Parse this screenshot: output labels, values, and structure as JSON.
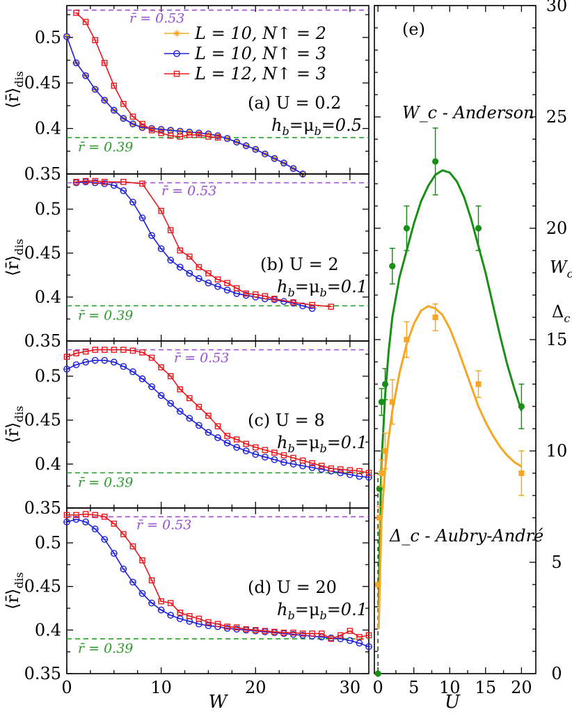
{
  "figure": {
    "x_label_left": "W",
    "x_label_right": "U",
    "y_label_left": "⟨r̄⟩",
    "y_label_left_sub": "dis",
    "right_axis_label_top": "W",
    "right_axis_label_top_sub": "c",
    "right_axis_label_bottom": "Δ",
    "right_axis_label_bottom_sub": "c"
  },
  "legend": [
    {
      "label": "L = 10, N↑ = 2",
      "color": "#f5a623",
      "marker": "star"
    },
    {
      "label": "L = 10, N↑ = 3",
      "color": "#1f22d6",
      "marker": "circle"
    },
    {
      "label": "L = 12, N↑ = 3",
      "color": "#e8191c",
      "marker": "square"
    }
  ],
  "colors": {
    "blue": "#1f22d6",
    "red": "#e8191c",
    "orange": "#f5a623",
    "green": "#1a8f17",
    "purple": "#9a4fd0",
    "dgreen": "#2e9a2e"
  },
  "chart_data": [
    {
      "type": "line",
      "panel": "a",
      "label_line1": "(a) U = 0.2",
      "label_line2": "h_b=μ_b=0.5",
      "xlabel": "",
      "ylabel": "⟨r̄⟩_dis",
      "xlim": [
        0,
        32
      ],
      "ylim": [
        0.35,
        0.535
      ],
      "yticks": [
        0.35,
        0.4,
        0.45,
        0.5
      ],
      "ref_lines": [
        {
          "y": 0.53,
          "label": "r̄ = 0.53"
        },
        {
          "y": 0.39,
          "label": "r̄ = 0.39"
        }
      ],
      "series": [
        {
          "name": "L = 10, N↑ = 2",
          "x": [
            0,
            1,
            2,
            3,
            4,
            5,
            6,
            7,
            8,
            9,
            10,
            11,
            12,
            13,
            14,
            15,
            16,
            17,
            18,
            19,
            20,
            21,
            22,
            23,
            24,
            25
          ],
          "y": [
            0.501,
            0.472,
            0.458,
            0.443,
            0.431,
            0.42,
            0.411,
            0.405,
            0.401,
            0.4,
            0.399,
            0.398,
            0.397,
            0.396,
            0.395,
            0.394,
            0.392,
            0.389,
            0.385,
            0.381,
            0.377,
            0.372,
            0.367,
            0.362,
            0.356,
            0.35
          ]
        },
        {
          "name": "L = 10, N↑ = 3",
          "x": [
            0,
            1,
            2,
            3,
            4,
            5,
            6,
            7,
            8,
            9,
            10,
            11,
            12,
            13,
            14,
            15,
            16,
            17,
            18,
            19,
            20,
            21,
            22,
            23,
            24,
            25
          ],
          "y": [
            0.501,
            0.472,
            0.458,
            0.443,
            0.431,
            0.42,
            0.411,
            0.405,
            0.401,
            0.4,
            0.399,
            0.398,
            0.397,
            0.396,
            0.395,
            0.394,
            0.392,
            0.389,
            0.385,
            0.381,
            0.377,
            0.372,
            0.367,
            0.362,
            0.356,
            0.35
          ]
        },
        {
          "name": "L = 12, N↑ = 3",
          "x": [
            1,
            2,
            3,
            4,
            5,
            6,
            7,
            8,
            9,
            10,
            11,
            12,
            13,
            14,
            15,
            16
          ],
          "y": [
            0.527,
            0.517,
            0.497,
            0.472,
            0.447,
            0.427,
            0.413,
            0.405,
            0.398,
            0.395,
            0.392,
            0.391,
            0.393,
            0.393,
            0.391,
            0.39
          ]
        }
      ]
    },
    {
      "type": "line",
      "panel": "b",
      "label_line1": "(b) U = 2",
      "label_line2": "h_b=μ_b=0.1",
      "xlabel": "",
      "ylabel": "⟨r̄⟩_dis",
      "xlim": [
        0,
        32
      ],
      "ylim": [
        0.35,
        0.54
      ],
      "yticks": [
        0.35,
        0.4,
        0.45,
        0.5
      ],
      "ref_lines": [
        {
          "y": 0.53,
          "label": "r̄ = 0.53"
        },
        {
          "y": 0.39,
          "label": "r̄ = 0.39"
        }
      ],
      "series": [
        {
          "name": "L = 10, N↑ = 3",
          "x": [
            1,
            2,
            3,
            4,
            5,
            6,
            7,
            8,
            9,
            10,
            11,
            12,
            13,
            14,
            15,
            16,
            17,
            18,
            19,
            20,
            21,
            22,
            23,
            24,
            25,
            26
          ],
          "y": [
            0.53,
            0.531,
            0.53,
            0.529,
            0.527,
            0.521,
            0.508,
            0.49,
            0.47,
            0.455,
            0.442,
            0.434,
            0.427,
            0.421,
            0.416,
            0.412,
            0.408,
            0.404,
            0.402,
            0.4,
            0.398,
            0.397,
            0.395,
            0.393,
            0.39,
            0.387
          ]
        },
        {
          "name": "L = 12, N↑ = 3",
          "x": [
            1,
            2,
            3,
            4,
            6,
            8,
            10,
            11,
            12,
            13,
            14,
            15,
            16,
            17,
            18,
            19,
            20,
            21,
            22,
            24,
            26,
            28
          ],
          "y": [
            0.531,
            0.532,
            0.532,
            0.531,
            0.531,
            0.529,
            0.498,
            0.476,
            0.453,
            0.446,
            0.434,
            0.427,
            0.42,
            0.416,
            0.41,
            0.404,
            0.403,
            0.401,
            0.398,
            0.394,
            0.391,
            0.389
          ]
        }
      ]
    },
    {
      "type": "line",
      "panel": "c",
      "label_line1": "(c) U = 8",
      "label_line2": "h_b=μ_b=0.1",
      "xlabel": "",
      "ylabel": "⟨r̄⟩_dis",
      "xlim": [
        0,
        32
      ],
      "ylim": [
        0.35,
        0.54
      ],
      "yticks": [
        0.35,
        0.4,
        0.45,
        0.5
      ],
      "ref_lines": [
        {
          "y": 0.53,
          "label": "r̄ = 0.53"
        },
        {
          "y": 0.39,
          "label": "r̄ = 0.39"
        }
      ],
      "series": [
        {
          "name": "L = 10, N↑ = 3",
          "x": [
            0,
            1,
            2,
            3,
            4,
            5,
            6,
            7,
            8,
            9,
            10,
            11,
            12,
            13,
            14,
            15,
            16,
            17,
            18,
            19,
            20,
            21,
            22,
            23,
            24,
            25,
            26,
            27,
            28,
            29,
            30,
            31,
            32
          ],
          "y": [
            0.508,
            0.513,
            0.516,
            0.518,
            0.518,
            0.516,
            0.511,
            0.505,
            0.497,
            0.488,
            0.478,
            0.469,
            0.46,
            0.452,
            0.444,
            0.436,
            0.43,
            0.424,
            0.419,
            0.415,
            0.411,
            0.408,
            0.405,
            0.402,
            0.4,
            0.398,
            0.396,
            0.394,
            0.392,
            0.39,
            0.388,
            0.386,
            0.385
          ]
        },
        {
          "name": "L = 12, N↑ = 3",
          "x": [
            0,
            1,
            2,
            3,
            4,
            5,
            6,
            7,
            8,
            9,
            10,
            11,
            12,
            13,
            14,
            15,
            16,
            17,
            18,
            19,
            20,
            21,
            22,
            23,
            24,
            25,
            26,
            27,
            28,
            29,
            30,
            31,
            32
          ],
          "y": [
            0.522,
            0.526,
            0.528,
            0.53,
            0.53,
            0.53,
            0.53,
            0.529,
            0.527,
            0.521,
            0.51,
            0.5,
            0.485,
            0.475,
            0.465,
            0.455,
            0.443,
            0.432,
            0.428,
            0.423,
            0.419,
            0.416,
            0.413,
            0.41,
            0.407,
            0.404,
            0.401,
            0.398,
            0.395,
            0.394,
            0.393,
            0.392,
            0.39
          ]
        }
      ]
    },
    {
      "type": "line",
      "panel": "d",
      "label_line1": "(d) U = 20",
      "label_line2": "h_b=μ_b=0.1",
      "xlabel": "W",
      "ylabel": "⟨r̄⟩_dis",
      "xlim": [
        0,
        32
      ],
      "ylim": [
        0.35,
        0.54
      ],
      "xticks": [
        0,
        10,
        20,
        30
      ],
      "yticks": [
        0.35,
        0.4,
        0.45,
        0.5
      ],
      "ref_lines": [
        {
          "y": 0.53,
          "label": "r̄ = 0.53"
        },
        {
          "y": 0.39,
          "label": "r̄ = 0.39"
        }
      ],
      "series": [
        {
          "name": "L = 10, N↑ = 3",
          "x": [
            0,
            1,
            2,
            3,
            4,
            5,
            6,
            7,
            8,
            9,
            10,
            11,
            12,
            13,
            14,
            15,
            16,
            17,
            18,
            19,
            20,
            21,
            22,
            23,
            24,
            25,
            26,
            27,
            28,
            29,
            30,
            31,
            32
          ],
          "y": [
            0.524,
            0.527,
            0.524,
            0.516,
            0.504,
            0.488,
            0.47,
            0.455,
            0.442,
            0.431,
            0.423,
            0.417,
            0.413,
            0.41,
            0.407,
            0.405,
            0.404,
            0.402,
            0.401,
            0.4,
            0.399,
            0.398,
            0.397,
            0.396,
            0.395,
            0.394,
            0.393,
            0.392,
            0.391,
            0.39,
            0.388,
            0.385,
            0.381
          ]
        },
        {
          "name": "L = 12, N↑ = 3",
          "x": [
            0,
            1,
            2,
            3,
            4,
            5,
            6,
            7,
            8,
            9,
            10,
            11,
            12,
            13,
            14,
            15,
            16,
            17,
            18,
            19,
            20,
            21,
            22,
            23,
            24,
            25,
            26,
            27,
            28,
            29,
            30,
            31,
            32
          ],
          "y": [
            0.532,
            0.532,
            0.533,
            0.532,
            0.53,
            0.522,
            0.51,
            0.496,
            0.48,
            0.457,
            0.433,
            0.431,
            0.42,
            0.416,
            0.413,
            0.409,
            0.407,
            0.404,
            0.403,
            0.401,
            0.4,
            0.399,
            0.398,
            0.397,
            0.397,
            0.396,
            0.396,
            0.396,
            0.39,
            0.394,
            0.399,
            0.392,
            0.394
          ]
        }
      ]
    },
    {
      "type": "scatter",
      "panel": "e",
      "label": "(e)",
      "xlabel": "U",
      "ylabel": "W_c , Δ_c",
      "xlim": [
        -0.5,
        22
      ],
      "ylim": [
        0,
        30
      ],
      "xticks": [
        0,
        5,
        10,
        15,
        20
      ],
      "yticks": [
        0,
        5,
        10,
        15,
        20,
        25,
        30
      ],
      "annotations": [
        "W_c - Anderson",
        "Δ_c - Aubry-André"
      ],
      "series": [
        {
          "name": "W_c - Anderson",
          "x": [
            0,
            0.2,
            0.5,
            1,
            2,
            4,
            8,
            14,
            20
          ],
          "y": [
            0,
            8.3,
            12.2,
            13,
            18.3,
            20,
            23,
            20,
            12
          ],
          "err": [
            0,
            0,
            0.6,
            0.7,
            0.8,
            1,
            1.5,
            1,
            1
          ]
        },
        {
          "name": "Δ_c - Aubry-André",
          "x": [
            0,
            0.2,
            0.5,
            1,
            2,
            4,
            8,
            14,
            20
          ],
          "y": [
            4,
            7,
            9,
            10,
            12.2,
            15,
            16,
            13,
            9
          ],
          "err": [
            0,
            0.5,
            0.6,
            0.8,
            1,
            0.8,
            0.6,
            0.6,
            1
          ]
        }
      ],
      "fits": [
        {
          "name": "W_c fit",
          "x": [
            0.1,
            0.3,
            0.5,
            1,
            1.5,
            2,
            3,
            4,
            5,
            6,
            7,
            8,
            9,
            10,
            11,
            12,
            13,
            14,
            15,
            16,
            17,
            18,
            19,
            20
          ],
          "y": [
            3,
            7,
            9.5,
            12.5,
            14.5,
            16,
            17.8,
            19,
            20.2,
            21.2,
            21.9,
            22.4,
            22.6,
            22.5,
            22.1,
            21.4,
            20.4,
            19.2,
            18,
            16.6,
            15.2,
            13.9,
            12.8,
            11.8
          ]
        },
        {
          "name": "Δ_c fit",
          "x": [
            0.1,
            0.3,
            0.5,
            1,
            1.5,
            2,
            3,
            4,
            5,
            6,
            7,
            8,
            9,
            10,
            11,
            12,
            13,
            14,
            15,
            16,
            17,
            18,
            19,
            20
          ],
          "y": [
            2,
            4.5,
            7,
            9.2,
            10.6,
            11.8,
            13.5,
            14.8,
            15.7,
            16.3,
            16.5,
            16.4,
            16.1,
            15.5,
            14.7,
            13.8,
            12.9,
            12,
            11.3,
            10.7,
            10.2,
            9.8,
            9.5,
            9.3
          ]
        }
      ]
    }
  ]
}
